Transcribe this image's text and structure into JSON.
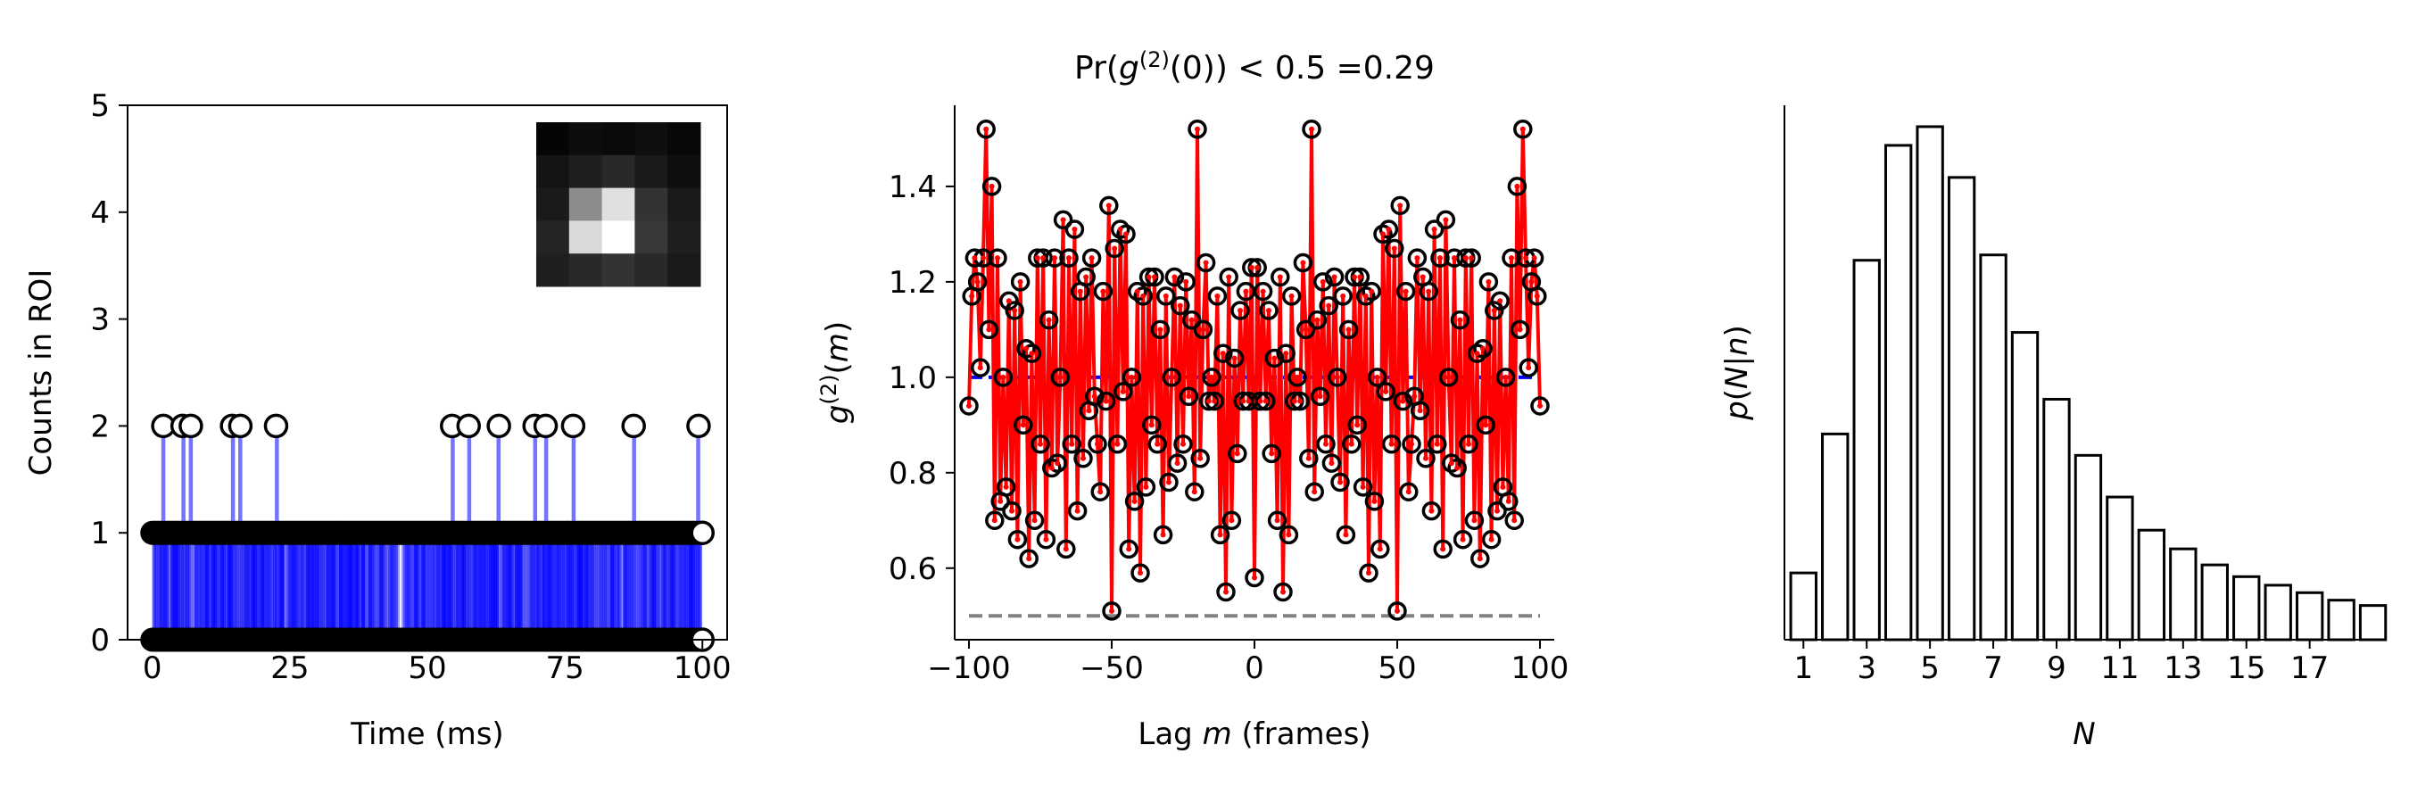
{
  "chart_data": [
    {
      "type": "scatter",
      "xlabel": "Time (ms)",
      "ylabel": "Counts in ROI",
      "xlim": [
        -4.5,
        104.5
      ],
      "ylim": [
        0,
        5
      ],
      "xticks": [
        0,
        25,
        50,
        75,
        100
      ],
      "xtick_labels": [
        "0",
        "25",
        "50",
        "75",
        "100"
      ],
      "yticks": [
        0,
        1,
        2,
        3,
        4,
        5
      ],
      "ytick_labels": [
        "0",
        "1",
        "2",
        "3",
        "4",
        "5"
      ],
      "stem_color": "#0000ff",
      "frame_count": 301,
      "frame_interval_ms": 0.333,
      "two_count_times_ms": [
        2,
        5.5,
        7,
        14.5,
        16,
        22.5,
        54.5,
        57.5,
        63,
        69.5,
        71.5,
        76.5,
        87.5,
        99.3
      ],
      "inset_image": {
        "rows": 5,
        "cols": 5,
        "intensity": [
          [
            0.02,
            0.05,
            0.04,
            0.06,
            0.03
          ],
          [
            0.08,
            0.12,
            0.16,
            0.1,
            0.06
          ],
          [
            0.1,
            0.55,
            0.88,
            0.2,
            0.1
          ],
          [
            0.14,
            0.85,
            1.0,
            0.22,
            0.12
          ],
          [
            0.12,
            0.16,
            0.2,
            0.16,
            0.1
          ]
        ]
      }
    },
    {
      "type": "line",
      "title": "Pr(g(2)(0)) < 0.5 =0.29",
      "xlabel": "Lag m (frames)",
      "ylabel": "g(2)(m)",
      "xlim": [
        -105,
        105
      ],
      "ylim": [
        0.45,
        1.57
      ],
      "xticks": [
        -100,
        -50,
        0,
        50,
        100
      ],
      "xtick_labels": [
        "−100",
        "−50",
        "0",
        "50",
        "100"
      ],
      "yticks": [
        0.6,
        0.8,
        1.0,
        1.2,
        1.4
      ],
      "ytick_labels": [
        "0.6",
        "0.8",
        "1.0",
        "1.2",
        "1.4"
      ],
      "line_color": "#ff0000",
      "reference_lines": [
        {
          "y": 1.0,
          "x_range": [
            -100,
            100
          ],
          "color": "#0000ff",
          "style": "dashed"
        },
        {
          "y": 0.5,
          "x_range": [
            -100,
            100
          ],
          "color": "#808080",
          "style": "dashed"
        }
      ],
      "x": [
        -100,
        -99,
        -98,
        -97,
        -96,
        -95,
        -94,
        -93,
        -92,
        -91,
        -90,
        -89,
        -88,
        -87,
        -86,
        -85,
        -84,
        -83,
        -82,
        -81,
        -80,
        -79,
        -78,
        -77,
        -76,
        -75,
        -74,
        -73,
        -72,
        -71,
        -70,
        -69,
        -68,
        -67,
        -66,
        -65,
        -64,
        -63,
        -62,
        -61,
        -60,
        -59,
        -58,
        -57,
        -56,
        -55,
        -54,
        -53,
        -52,
        -51,
        -50,
        -49,
        -48,
        -47,
        -46,
        -45,
        -44,
        -43,
        -42,
        -41,
        -40,
        -39,
        -38,
        -37,
        -36,
        -35,
        -34,
        -33,
        -32,
        -31,
        -30,
        -29,
        -28,
        -27,
        -26,
        -25,
        -24,
        -23,
        -22,
        -21,
        -20,
        -19,
        -18,
        -17,
        -16,
        -15,
        -14,
        -13,
        -12,
        -11,
        -10,
        -9,
        -8,
        -7,
        -6,
        -5,
        -4,
        -3,
        -2,
        -1,
        0,
        1,
        2,
        3,
        4,
        5,
        6,
        7,
        8,
        9,
        10,
        11,
        12,
        13,
        14,
        15,
        16,
        17,
        18,
        19,
        20,
        21,
        22,
        23,
        24,
        25,
        26,
        27,
        28,
        29,
        30,
        31,
        32,
        33,
        34,
        35,
        36,
        37,
        38,
        39,
        40,
        41,
        42,
        43,
        44,
        45,
        46,
        47,
        48,
        49,
        50,
        51,
        52,
        53,
        54,
        55,
        56,
        57,
        58,
        59,
        60,
        61,
        62,
        63,
        64,
        65,
        66,
        67,
        68,
        69,
        70,
        71,
        72,
        73,
        74,
        75,
        76,
        77,
        78,
        79,
        80,
        81,
        82,
        83,
        84,
        85,
        86,
        87,
        88,
        89,
        90,
        91,
        92,
        93,
        94,
        95,
        96,
        97,
        98,
        99,
        100
      ],
      "values": [
        0.94,
        1.17,
        1.25,
        1.2,
        1.02,
        1.25,
        1.52,
        1.1,
        1.4,
        0.7,
        1.25,
        0.74,
        1.0,
        0.77,
        1.16,
        0.72,
        1.14,
        0.66,
        1.2,
        0.9,
        1.06,
        0.62,
        1.05,
        0.7,
        1.25,
        0.86,
        1.25,
        0.66,
        1.12,
        0.81,
        1.25,
        0.82,
        1.0,
        1.33,
        0.64,
        1.25,
        0.86,
        1.31,
        0.72,
        1.18,
        0.83,
        1.21,
        0.93,
        1.25,
        0.96,
        0.86,
        0.76,
        1.18,
        0.95,
        1.36,
        0.51,
        1.27,
        0.86,
        1.31,
        0.97,
        1.3,
        0.64,
        1.0,
        0.74,
        1.18,
        0.59,
        1.17,
        0.77,
        1.21,
        0.9,
        1.21,
        0.86,
        1.1,
        0.67,
        1.17,
        0.78,
        1.0,
        1.21,
        0.82,
        1.15,
        0.86,
        1.2,
        0.96,
        1.12,
        0.76,
        1.52,
        0.83,
        1.1,
        1.24,
        0.95,
        1.0,
        0.95,
        1.17,
        0.67,
        1.05,
        0.55,
        1.21,
        0.7,
        1.04,
        0.84,
        1.14,
        0.95,
        1.18,
        0.95,
        1.23,
        0.58,
        1.23,
        0.95,
        1.18,
        0.95,
        1.14,
        0.84,
        1.04,
        0.7,
        1.21,
        0.55,
        1.05,
        0.67,
        1.17,
        0.95,
        1.0,
        0.95,
        1.24,
        1.1,
        0.83,
        1.52,
        0.76,
        1.12,
        0.96,
        1.2,
        0.86,
        1.15,
        0.82,
        1.21,
        1.0,
        0.78,
        1.17,
        0.67,
        1.1,
        0.86,
        1.21,
        0.9,
        1.21,
        0.77,
        1.17,
        0.59,
        1.18,
        0.74,
        1.0,
        0.64,
        1.3,
        0.97,
        1.31,
        0.86,
        1.27,
        0.51,
        1.36,
        0.95,
        1.18,
        0.76,
        0.86,
        0.96,
        1.25,
        0.93,
        1.21,
        0.83,
        1.18,
        0.72,
        1.31,
        0.86,
        1.25,
        0.64,
        1.33,
        1.0,
        0.82,
        1.25,
        0.81,
        1.12,
        0.66,
        1.25,
        0.86,
        1.25,
        0.7,
        1.05,
        0.62,
        1.06,
        0.9,
        1.2,
        0.66,
        1.14,
        0.72,
        1.16,
        0.77,
        1.0,
        0.74,
        1.25,
        0.7,
        1.4,
        1.1,
        1.52,
        1.25,
        1.02,
        1.2,
        1.25,
        1.17,
        0.94
      ]
    },
    {
      "type": "bar",
      "xlabel": "N",
      "ylabel": "p(N|n)",
      "xlim": [
        0.4,
        19.35
      ],
      "ylim": [
        0,
        1.0
      ],
      "xticks": [
        1,
        3,
        5,
        7,
        9,
        11,
        13,
        15,
        17
      ],
      "xtick_labels": [
        "1",
        "3",
        "5",
        "7",
        "9",
        "11",
        "13",
        "15",
        "17"
      ],
      "categories": [
        1,
        2,
        3,
        4,
        5,
        6,
        7,
        8,
        9,
        10,
        11,
        12,
        13,
        14,
        15,
        16,
        17,
        18,
        19
      ],
      "values": [
        0.125,
        0.385,
        0.71,
        0.925,
        0.96,
        0.865,
        0.72,
        0.575,
        0.45,
        0.345,
        0.267,
        0.205,
        0.17,
        0.14,
        0.118,
        0.102,
        0.088,
        0.074,
        0.064
      ],
      "bar_fill": "#ffffff",
      "bar_edge": "#000000"
    }
  ]
}
